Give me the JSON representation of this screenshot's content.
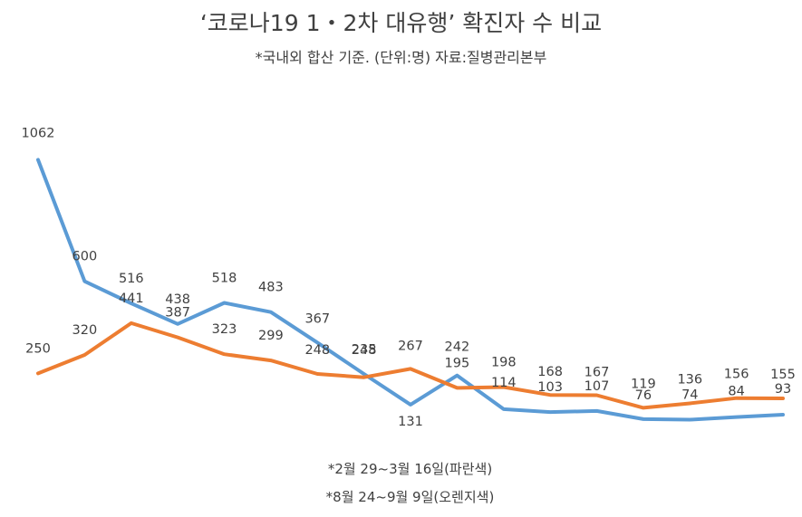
{
  "chart_data": {
    "type": "line",
    "title": "‘코로나19 1・2차 대유행’ 확진자 수 비교",
    "subtitle": "*국내외 합산 기준. (단위:명) 자료:질병관리본부",
    "notes": [
      "*2월 29~3월 16일(파란색)",
      "*8월 24~9월 9일(오렌지색)"
    ],
    "ylim": [
      0,
      1100
    ],
    "grid": false,
    "series": [
      {
        "color": "#5B9BD5",
        "values": [
          1062,
          600,
          516,
          438,
          518,
          483,
          367,
          248,
          131,
          242,
          114,
          103,
          107,
          76,
          74,
          84,
          93
        ]
      },
      {
        "color": "#ED7D31",
        "values": [
          250,
          320,
          441,
          387,
          323,
          299,
          248,
          235,
          267,
          195,
          198,
          168,
          167,
          119,
          136,
          156,
          155
        ]
      }
    ]
  }
}
